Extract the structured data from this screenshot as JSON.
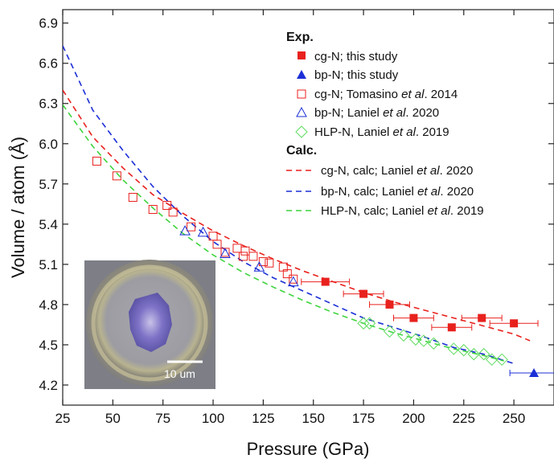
{
  "chart_data": {
    "type": "scatter",
    "xlabel": "Pressure (GPa)",
    "ylabel": "Volume / atom (Å)",
    "xlim": [
      25,
      270
    ],
    "ylim": [
      4.05,
      7.0
    ],
    "x_ticks": [
      25,
      50,
      75,
      100,
      125,
      150,
      175,
      200,
      225,
      250
    ],
    "y_ticks": [
      4.2,
      4.5,
      4.8,
      5.1,
      5.4,
      5.7,
      6.0,
      6.3,
      6.6,
      6.9
    ],
    "grid": false,
    "legend_placement": "top-right",
    "legend_groups": [
      "Exp.",
      "Calc."
    ],
    "series": [
      {
        "name": "cg-N; this study",
        "marker": "filled-square",
        "color": "#e8211d",
        "points": [
          {
            "x": 156,
            "y": 4.97,
            "xerr": 12
          },
          {
            "x": 175,
            "y": 4.88,
            "xerr": 10
          },
          {
            "x": 188,
            "y": 4.8,
            "xerr": 10
          },
          {
            "x": 200,
            "y": 4.7,
            "xerr": 10
          },
          {
            "x": 219,
            "y": 4.63,
            "xerr": 10
          },
          {
            "x": 234,
            "y": 4.7,
            "xerr": 10
          },
          {
            "x": 250,
            "y": 4.66,
            "xerr": 12
          }
        ]
      },
      {
        "name": "bp-N; this study",
        "marker": "filled-triangle",
        "color": "#1c2fd6",
        "points": [
          {
            "x": 260,
            "y": 4.29,
            "xerr": 12
          }
        ]
      },
      {
        "name": "cg-N; Tomasino et al. 2014",
        "marker": "open-square",
        "color": "#e8211d",
        "points": [
          {
            "x": 42,
            "y": 5.87
          },
          {
            "x": 52,
            "y": 5.76
          },
          {
            "x": 60,
            "y": 5.6
          },
          {
            "x": 70,
            "y": 5.51
          },
          {
            "x": 77,
            "y": 5.54
          },
          {
            "x": 80,
            "y": 5.49
          },
          {
            "x": 89,
            "y": 5.38
          },
          {
            "x": 100,
            "y": 5.31
          },
          {
            "x": 102,
            "y": 5.25
          },
          {
            "x": 106,
            "y": 5.19
          },
          {
            "x": 112,
            "y": 5.22
          },
          {
            "x": 115,
            "y": 5.16
          },
          {
            "x": 116,
            "y": 5.2
          },
          {
            "x": 120,
            "y": 5.16
          },
          {
            "x": 125,
            "y": 5.12
          },
          {
            "x": 128,
            "y": 5.11
          },
          {
            "x": 135,
            "y": 5.08
          },
          {
            "x": 137,
            "y": 5.03
          },
          {
            "x": 140,
            "y": 4.99
          }
        ]
      },
      {
        "name": "bp-N; Laniel et al. 2020",
        "marker": "open-triangle",
        "color": "#1c2fd6",
        "points": [
          {
            "x": 86,
            "y": 5.35
          },
          {
            "x": 95,
            "y": 5.34
          },
          {
            "x": 106,
            "y": 5.18
          },
          {
            "x": 123,
            "y": 5.08
          },
          {
            "x": 140,
            "y": 4.97
          }
        ]
      },
      {
        "name": "HLP-N, Laniel et al. 2019",
        "marker": "open-diamond",
        "color": "#5fdc5f",
        "points": [
          {
            "x": 175,
            "y": 4.66
          },
          {
            "x": 178,
            "y": 4.66
          },
          {
            "x": 188,
            "y": 4.6
          },
          {
            "x": 195,
            "y": 4.57
          },
          {
            "x": 201,
            "y": 4.54
          },
          {
            "x": 205,
            "y": 4.53
          },
          {
            "x": 210,
            "y": 4.51
          },
          {
            "x": 220,
            "y": 4.47
          },
          {
            "x": 225,
            "y": 4.46
          },
          {
            "x": 230,
            "y": 4.43
          },
          {
            "x": 235,
            "y": 4.43
          },
          {
            "x": 239,
            "y": 4.39
          },
          {
            "x": 244,
            "y": 4.39
          }
        ]
      }
    ],
    "curves": [
      {
        "name": "cg-N, calc; Laniel et al. 2020",
        "style": "dashed",
        "color": "#e8211d",
        "points": [
          [
            25,
            6.4
          ],
          [
            40,
            6.05
          ],
          [
            55,
            5.82
          ],
          [
            70,
            5.62
          ],
          [
            85,
            5.48
          ],
          [
            100,
            5.35
          ],
          [
            115,
            5.24
          ],
          [
            130,
            5.14
          ],
          [
            145,
            5.05
          ],
          [
            160,
            4.97
          ],
          [
            175,
            4.89
          ],
          [
            190,
            4.82
          ],
          [
            205,
            4.76
          ],
          [
            220,
            4.7
          ],
          [
            235,
            4.64
          ],
          [
            250,
            4.58
          ],
          [
            258,
            4.53
          ]
        ]
      },
      {
        "name": "bp-N, calc; Laniel et al. 2020",
        "style": "dashed",
        "color": "#1c2fd6",
        "points": [
          [
            25,
            6.73
          ],
          [
            40,
            6.25
          ],
          [
            55,
            5.95
          ],
          [
            70,
            5.68
          ],
          [
            85,
            5.46
          ],
          [
            100,
            5.27
          ],
          [
            115,
            5.12
          ],
          [
            130,
            5.0
          ],
          [
            145,
            4.9
          ],
          [
            160,
            4.8
          ],
          [
            175,
            4.7
          ],
          [
            190,
            4.63
          ],
          [
            205,
            4.56
          ],
          [
            220,
            4.48
          ],
          [
            235,
            4.43
          ],
          [
            250,
            4.36
          ]
        ]
      },
      {
        "name": "HLP-N, calc; Laniel et al. 2019",
        "style": "dashed",
        "color": "#3fd43f",
        "points": [
          [
            25,
            6.29
          ],
          [
            40,
            5.98
          ],
          [
            55,
            5.73
          ],
          [
            70,
            5.52
          ],
          [
            85,
            5.33
          ],
          [
            100,
            5.17
          ],
          [
            115,
            5.04
          ],
          [
            130,
            4.93
          ],
          [
            145,
            4.83
          ],
          [
            160,
            4.74
          ],
          [
            175,
            4.66
          ],
          [
            190,
            4.59
          ],
          [
            205,
            4.53
          ],
          [
            220,
            4.47
          ],
          [
            235,
            4.42
          ],
          [
            245,
            4.38
          ]
        ]
      }
    ],
    "inset": {
      "scale_bar_label": "10 um"
    }
  }
}
